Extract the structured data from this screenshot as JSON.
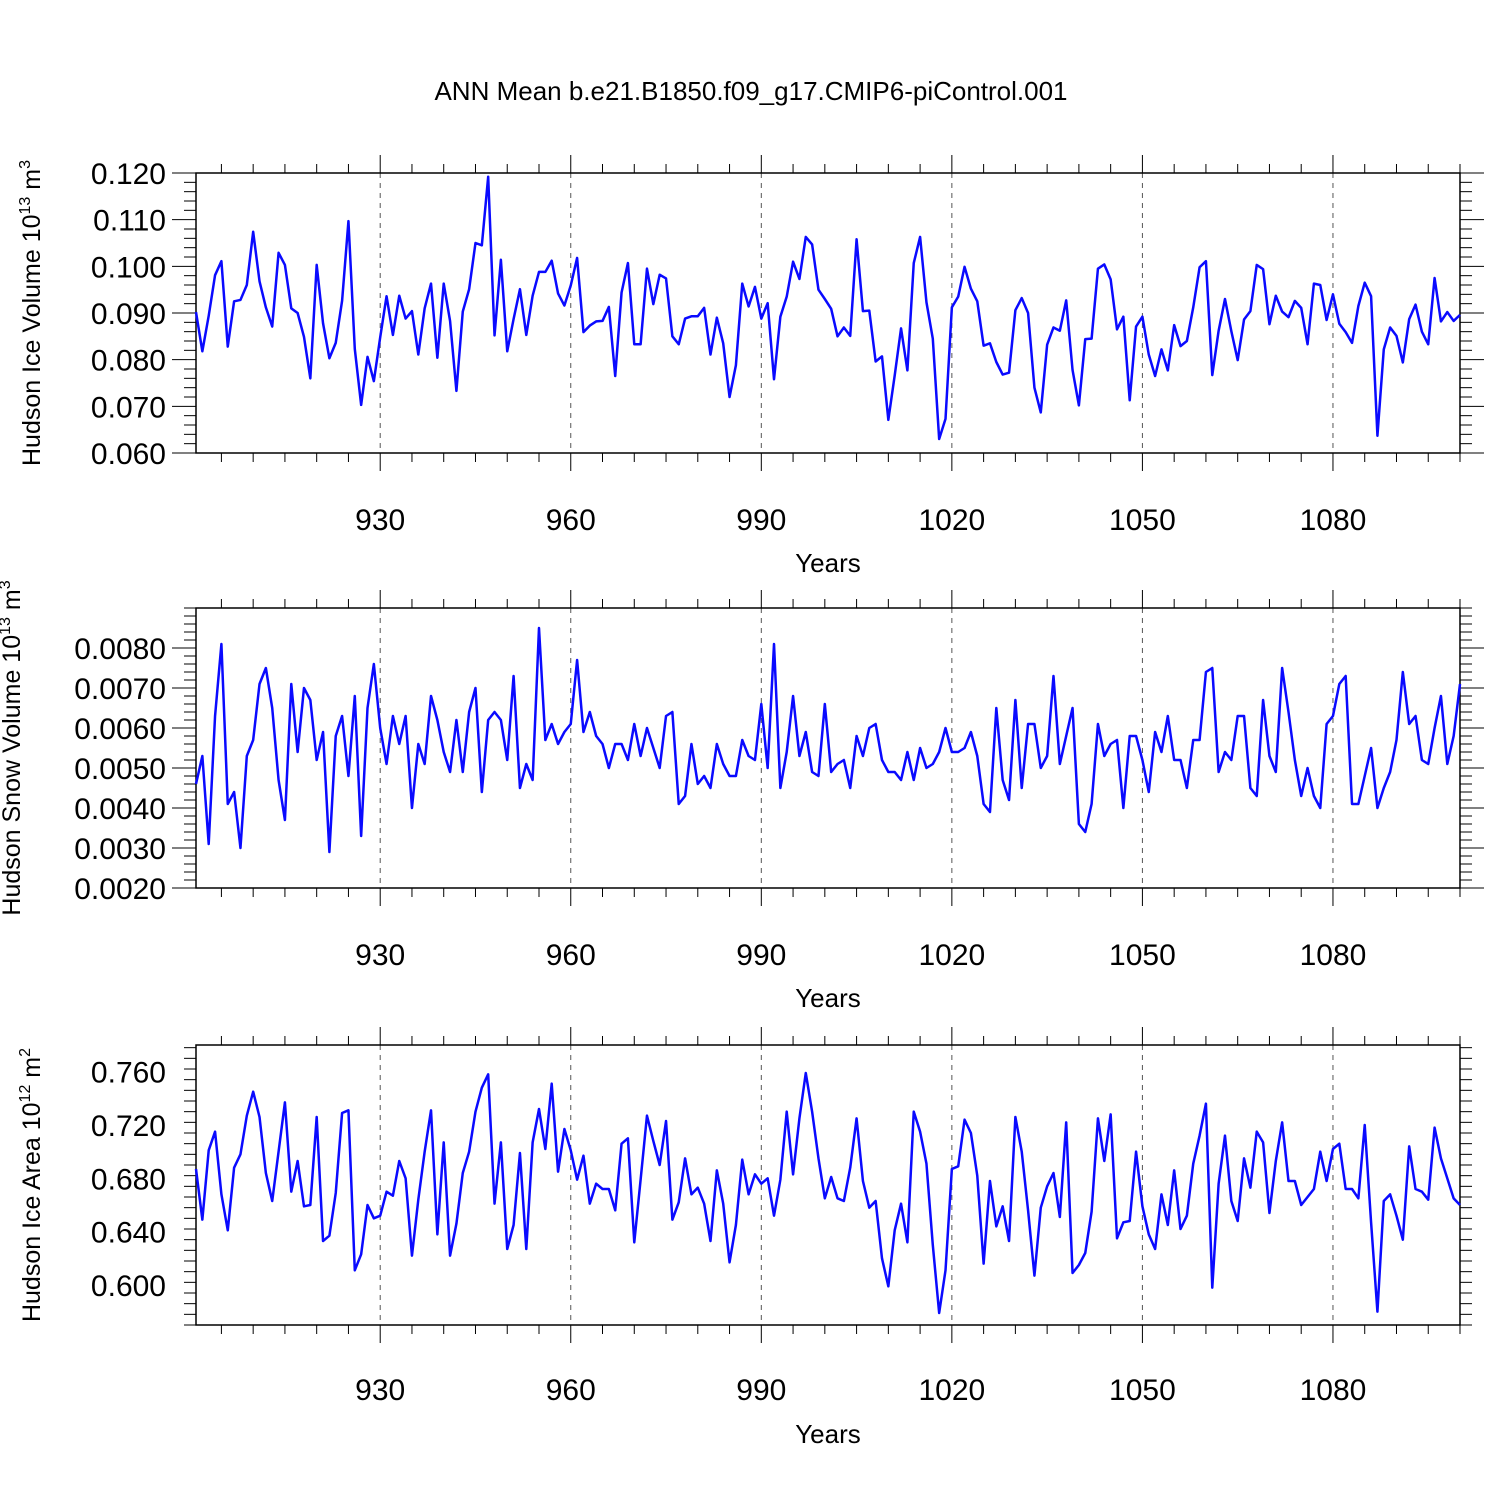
{
  "figure": {
    "title": "ANN Mean b.e21.B1850.f09_g17.CMIP6-piControl.001",
    "line_color": "#0a0aff",
    "grid_color": "#555555"
  },
  "chart_data": [
    {
      "type": "line",
      "title": "ANN Mean b.e21.B1850.f09_g17.CMIP6-piControl.001",
      "ylabel": "Hudson Ice Volume",
      "yunits_base": "10",
      "yunits_exp": "13",
      "yunits_unit": "m",
      "yunits_unit_exp": "3",
      "xlabel": "Years",
      "xlim": [
        901,
        1100
      ],
      "ylim": [
        0.06,
        0.12
      ],
      "yticks": [
        0.06,
        0.07,
        0.08,
        0.09,
        0.1,
        0.11,
        0.12
      ],
      "ytick_labels": [
        "0.060",
        "0.070",
        "0.080",
        "0.090",
        "0.100",
        "0.110",
        "0.120"
      ],
      "xticks": [
        930,
        960,
        990,
        1020,
        1050,
        1080
      ],
      "xtick_labels": [
        "930",
        "960",
        "990",
        "1020",
        "1050",
        "1080"
      ],
      "grid": "vertical dashed at major x ticks",
      "x_start": 901,
      "values": [
        0.0902,
        0.0818,
        0.0894,
        0.0981,
        0.1011,
        0.0828,
        0.0925,
        0.0928,
        0.096,
        0.1074,
        0.0968,
        0.0912,
        0.0871,
        0.1029,
        0.1003,
        0.091,
        0.09,
        0.0849,
        0.076,
        0.1003,
        0.0878,
        0.0803,
        0.0836,
        0.0926,
        0.1097,
        0.0823,
        0.0703,
        0.0806,
        0.0754,
        0.0848,
        0.0936,
        0.0853,
        0.0937,
        0.0888,
        0.0904,
        0.0811,
        0.091,
        0.0963,
        0.0804,
        0.0963,
        0.0883,
        0.0733,
        0.0903,
        0.0951,
        0.105,
        0.1045,
        0.1192,
        0.0852,
        0.1014,
        0.0818,
        0.0887,
        0.0951,
        0.0853,
        0.0937,
        0.0988,
        0.0988,
        0.1012,
        0.0942,
        0.0916,
        0.0959,
        0.1018,
        0.0859,
        0.0873,
        0.0882,
        0.0883,
        0.0913,
        0.0765,
        0.0944,
        0.1007,
        0.0833,
        0.0833,
        0.0995,
        0.0919,
        0.0982,
        0.0974,
        0.085,
        0.0833,
        0.0888,
        0.0893,
        0.0893,
        0.0911,
        0.0811,
        0.089,
        0.0835,
        0.072,
        0.0788,
        0.0963,
        0.0914,
        0.0956,
        0.0888,
        0.0921,
        0.0758,
        0.0892,
        0.0935,
        0.101,
        0.0973,
        0.1063,
        0.1047,
        0.095,
        0.093,
        0.0909,
        0.085,
        0.0869,
        0.0851,
        0.1058,
        0.0904,
        0.0905,
        0.0796,
        0.0807,
        0.0671,
        0.0766,
        0.0867,
        0.0777,
        0.1007,
        0.1063,
        0.0923,
        0.0845,
        0.063,
        0.0673,
        0.0912,
        0.0935,
        0.0999,
        0.0952,
        0.0925,
        0.083,
        0.0835,
        0.0795,
        0.0768,
        0.0772,
        0.0906,
        0.0932,
        0.09,
        0.074,
        0.0687,
        0.0832,
        0.0869,
        0.0862,
        0.0927,
        0.0778,
        0.0702,
        0.0844,
        0.0845,
        0.0995,
        0.1004,
        0.0972,
        0.0865,
        0.0892,
        0.0713,
        0.0871,
        0.0892,
        0.0811,
        0.0765,
        0.0822,
        0.0777,
        0.0874,
        0.0829,
        0.084,
        0.0912,
        0.0998,
        0.1011,
        0.0767,
        0.0862,
        0.093,
        0.0861,
        0.0799,
        0.0886,
        0.0904,
        0.1003,
        0.0994,
        0.0876,
        0.0937,
        0.0903,
        0.0891,
        0.0926,
        0.0911,
        0.0833,
        0.0963,
        0.096,
        0.0885,
        0.094,
        0.0877,
        0.0859,
        0.0836,
        0.0915,
        0.0965,
        0.0936,
        0.0637,
        0.0822,
        0.0869,
        0.0851,
        0.0794,
        0.0887,
        0.0918,
        0.086,
        0.0833,
        0.0975,
        0.0882,
        0.0902,
        0.0883,
        0.0896
      ]
    },
    {
      "type": "line",
      "ylabel": "Hudson Snow Volume",
      "yunits_base": "10",
      "yunits_exp": "13",
      "yunits_unit": "m",
      "yunits_unit_exp": "3",
      "xlabel": "Years",
      "xlim": [
        901,
        1100
      ],
      "ylim": [
        0.002,
        0.009
      ],
      "yticks": [
        0.002,
        0.003,
        0.004,
        0.005,
        0.006,
        0.007,
        0.008
      ],
      "ytick_labels": [
        "0.0020",
        "0.0030",
        "0.0040",
        "0.0050",
        "0.0060",
        "0.0070",
        "0.0080"
      ],
      "xticks": [
        930,
        960,
        990,
        1020,
        1050,
        1080
      ],
      "xtick_labels": [
        "930",
        "960",
        "990",
        "1020",
        "1050",
        "1080"
      ],
      "grid": "vertical dashed at major x ticks",
      "x_start": 901,
      "values": [
        0.0046,
        0.0053,
        0.0031,
        0.0063,
        0.0081,
        0.0041,
        0.0044,
        0.003,
        0.0053,
        0.0057,
        0.0071,
        0.0075,
        0.0065,
        0.0047,
        0.0037,
        0.0071,
        0.0054,
        0.007,
        0.0067,
        0.0052,
        0.0059,
        0.0029,
        0.0058,
        0.0063,
        0.0048,
        0.0068,
        0.0033,
        0.0065,
        0.0076,
        0.006,
        0.0051,
        0.0063,
        0.0056,
        0.0063,
        0.004,
        0.0056,
        0.0051,
        0.0068,
        0.0062,
        0.0054,
        0.0049,
        0.0062,
        0.0049,
        0.0064,
        0.007,
        0.0044,
        0.0062,
        0.0064,
        0.0062,
        0.0052,
        0.0073,
        0.0045,
        0.0051,
        0.0047,
        0.0085,
        0.0057,
        0.0061,
        0.0056,
        0.0059,
        0.0061,
        0.0077,
        0.0059,
        0.0064,
        0.0058,
        0.0056,
        0.005,
        0.0056,
        0.0056,
        0.0052,
        0.0061,
        0.0053,
        0.006,
        0.0055,
        0.005,
        0.0063,
        0.0064,
        0.0041,
        0.0043,
        0.0056,
        0.0046,
        0.0048,
        0.0045,
        0.0056,
        0.0051,
        0.0048,
        0.0048,
        0.0057,
        0.0053,
        0.0052,
        0.0066,
        0.005,
        0.0081,
        0.0045,
        0.0054,
        0.0068,
        0.0053,
        0.0059,
        0.0049,
        0.0048,
        0.0066,
        0.0049,
        0.0051,
        0.0052,
        0.0045,
        0.0058,
        0.0053,
        0.006,
        0.0061,
        0.0052,
        0.0049,
        0.0049,
        0.0047,
        0.0054,
        0.0047,
        0.0055,
        0.005,
        0.0051,
        0.0054,
        0.006,
        0.0054,
        0.0054,
        0.0055,
        0.0059,
        0.0053,
        0.0041,
        0.0039,
        0.0065,
        0.0047,
        0.0042,
        0.0067,
        0.0045,
        0.0061,
        0.0061,
        0.005,
        0.0053,
        0.0073,
        0.0051,
        0.0058,
        0.0065,
        0.0036,
        0.0034,
        0.0041,
        0.0061,
        0.0053,
        0.0056,
        0.0057,
        0.004,
        0.0058,
        0.0058,
        0.0052,
        0.0044,
        0.0059,
        0.0054,
        0.0063,
        0.0052,
        0.0052,
        0.0045,
        0.0057,
        0.0057,
        0.0074,
        0.0075,
        0.0049,
        0.0054,
        0.0052,
        0.0063,
        0.0063,
        0.0045,
        0.0043,
        0.0067,
        0.0053,
        0.0049,
        0.0075,
        0.0064,
        0.0052,
        0.0043,
        0.005,
        0.0043,
        0.004,
        0.0061,
        0.0063,
        0.0071,
        0.0073,
        0.0041,
        0.0041,
        0.0048,
        0.0055,
        0.004,
        0.0045,
        0.0049,
        0.0057,
        0.0074,
        0.0061,
        0.0063,
        0.0052,
        0.0051,
        0.006,
        0.0068,
        0.0051,
        0.0058,
        0.0071
      ]
    },
    {
      "type": "line",
      "ylabel": "Hudson Ice Area",
      "yunits_base": "10",
      "yunits_exp": "12",
      "yunits_unit": "m",
      "yunits_unit_exp": "2",
      "xlabel": "Years",
      "xlim": [
        901,
        1100
      ],
      "ylim": [
        0.57,
        0.78
      ],
      "yticks": [
        0.6,
        0.64,
        0.68,
        0.72,
        0.76
      ],
      "ytick_labels": [
        "0.600",
        "0.640",
        "0.680",
        "0.720",
        "0.760"
      ],
      "xticks": [
        930,
        960,
        990,
        1020,
        1050,
        1080
      ],
      "xtick_labels": [
        "930",
        "960",
        "990",
        "1020",
        "1050",
        "1080"
      ],
      "grid": "vertical dashed at major x ticks",
      "x_start": 901,
      "values": [
        0.687,
        0.649,
        0.701,
        0.715,
        0.668,
        0.641,
        0.688,
        0.698,
        0.727,
        0.745,
        0.726,
        0.684,
        0.663,
        0.7,
        0.737,
        0.67,
        0.693,
        0.659,
        0.66,
        0.726,
        0.633,
        0.637,
        0.669,
        0.729,
        0.731,
        0.611,
        0.623,
        0.66,
        0.65,
        0.652,
        0.67,
        0.667,
        0.693,
        0.68,
        0.622,
        0.664,
        0.7,
        0.731,
        0.638,
        0.707,
        0.622,
        0.646,
        0.684,
        0.7,
        0.73,
        0.748,
        0.758,
        0.661,
        0.707,
        0.627,
        0.645,
        0.699,
        0.627,
        0.707,
        0.732,
        0.702,
        0.751,
        0.685,
        0.717,
        0.701,
        0.679,
        0.697,
        0.661,
        0.676,
        0.672,
        0.672,
        0.656,
        0.706,
        0.71,
        0.632,
        0.679,
        0.727,
        0.708,
        0.69,
        0.723,
        0.649,
        0.662,
        0.695,
        0.668,
        0.673,
        0.661,
        0.633,
        0.686,
        0.661,
        0.617,
        0.645,
        0.694,
        0.668,
        0.683,
        0.676,
        0.68,
        0.652,
        0.679,
        0.73,
        0.683,
        0.725,
        0.759,
        0.73,
        0.695,
        0.665,
        0.681,
        0.665,
        0.663,
        0.688,
        0.725,
        0.678,
        0.658,
        0.663,
        0.62,
        0.599,
        0.641,
        0.661,
        0.632,
        0.73,
        0.715,
        0.691,
        0.63,
        0.579,
        0.611,
        0.687,
        0.689,
        0.724,
        0.714,
        0.682,
        0.616,
        0.678,
        0.644,
        0.659,
        0.633,
        0.726,
        0.7,
        0.656,
        0.607,
        0.658,
        0.674,
        0.684,
        0.651,
        0.722,
        0.609,
        0.615,
        0.624,
        0.655,
        0.725,
        0.693,
        0.728,
        0.635,
        0.647,
        0.648,
        0.7,
        0.659,
        0.638,
        0.627,
        0.668,
        0.645,
        0.686,
        0.642,
        0.652,
        0.691,
        0.712,
        0.736,
        0.598,
        0.676,
        0.712,
        0.663,
        0.648,
        0.695,
        0.673,
        0.715,
        0.707,
        0.654,
        0.693,
        0.722,
        0.678,
        0.678,
        0.66,
        0.666,
        0.672,
        0.7,
        0.678,
        0.702,
        0.706,
        0.672,
        0.672,
        0.665,
        0.72,
        0.647,
        0.58,
        0.663,
        0.668,
        0.652,
        0.634,
        0.704,
        0.672,
        0.67,
        0.664,
        0.718,
        0.695,
        0.68,
        0.665,
        0.66
      ]
    }
  ]
}
